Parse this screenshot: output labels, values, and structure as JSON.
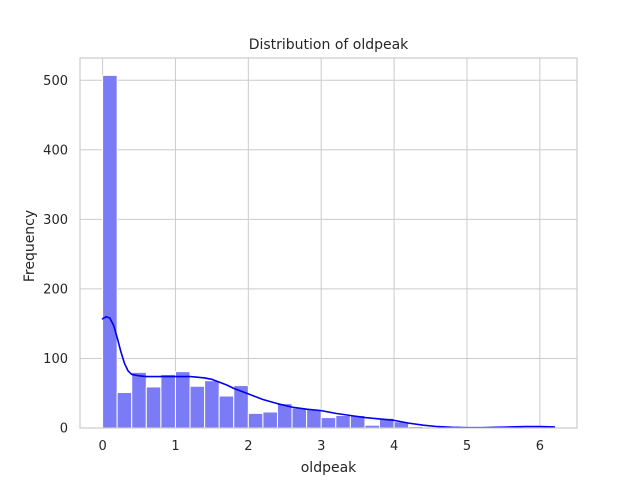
{
  "chart_data": {
    "type": "bar",
    "title": "Distribution of oldpeak",
    "xlabel": "oldpeak",
    "ylabel": "Frequency",
    "xlim": [
      -0.31,
      6.51
    ],
    "ylim": [
      0,
      532
    ],
    "xticks": [
      "0",
      "1",
      "2",
      "3",
      "4",
      "5",
      "6"
    ],
    "yticks": [
      "0",
      "100",
      "200",
      "300",
      "400",
      "500"
    ],
    "grid": true,
    "colors": {
      "bar_fill": "#7b7bf5",
      "bar_edge": "#ffffff",
      "kde_line": "#0000ee",
      "grid": "#cccccc",
      "axes_edge": "#cccccc",
      "background": "#ffffff"
    },
    "bins": [
      {
        "x0": 0.0,
        "x1": 0.2,
        "count": 507
      },
      {
        "x0": 0.2,
        "x1": 0.4,
        "count": 51
      },
      {
        "x0": 0.4,
        "x1": 0.6,
        "count": 80
      },
      {
        "x0": 0.6,
        "x1": 0.8,
        "count": 59
      },
      {
        "x0": 0.8,
        "x1": 1.0,
        "count": 77
      },
      {
        "x0": 1.0,
        "x1": 1.2,
        "count": 81
      },
      {
        "x0": 1.2,
        "x1": 1.4,
        "count": 60
      },
      {
        "x0": 1.4,
        "x1": 1.6,
        "count": 68
      },
      {
        "x0": 1.6,
        "x1": 1.8,
        "count": 46
      },
      {
        "x0": 1.8,
        "x1": 2.0,
        "count": 61
      },
      {
        "x0": 2.0,
        "x1": 2.2,
        "count": 21
      },
      {
        "x0": 2.2,
        "x1": 2.4,
        "count": 23
      },
      {
        "x0": 2.4,
        "x1": 2.6,
        "count": 35
      },
      {
        "x0": 2.6,
        "x1": 2.8,
        "count": 29
      },
      {
        "x0": 2.8,
        "x1": 3.0,
        "count": 27
      },
      {
        "x0": 3.0,
        "x1": 3.2,
        "count": 15
      },
      {
        "x0": 3.2,
        "x1": 3.4,
        "count": 18
      },
      {
        "x0": 3.4,
        "x1": 3.6,
        "count": 18
      },
      {
        "x0": 3.6,
        "x1": 3.8,
        "count": 4
      },
      {
        "x0": 3.8,
        "x1": 4.0,
        "count": 14
      },
      {
        "x0": 4.0,
        "x1": 4.2,
        "count": 9
      },
      {
        "x0": 4.2,
        "x1": 4.4,
        "count": 2
      },
      {
        "x0": 4.4,
        "x1": 4.6,
        "count": 1
      },
      {
        "x0": 4.6,
        "x1": 4.8,
        "count": 0
      },
      {
        "x0": 4.8,
        "x1": 5.0,
        "count": 0
      },
      {
        "x0": 5.0,
        "x1": 5.2,
        "count": 1
      },
      {
        "x0": 5.2,
        "x1": 5.4,
        "count": 1
      },
      {
        "x0": 5.4,
        "x1": 5.6,
        "count": 1
      },
      {
        "x0": 5.6,
        "x1": 5.8,
        "count": 1
      },
      {
        "x0": 5.8,
        "x1": 6.0,
        "count": 1
      },
      {
        "x0": 6.0,
        "x1": 6.2,
        "count": 1
      }
    ],
    "kde": {
      "x": [
        0.0,
        0.05,
        0.1,
        0.15,
        0.2,
        0.25,
        0.3,
        0.35,
        0.4,
        0.5,
        0.6,
        0.7,
        0.8,
        0.9,
        1.0,
        1.1,
        1.2,
        1.3,
        1.4,
        1.5,
        1.6,
        1.7,
        1.8,
        1.9,
        2.0,
        2.2,
        2.4,
        2.6,
        2.8,
        3.0,
        3.2,
        3.4,
        3.6,
        3.8,
        4.0,
        4.2,
        4.4,
        4.6,
        4.8,
        5.0,
        5.2,
        5.4,
        5.6,
        5.8,
        6.0,
        6.2
      ],
      "y": [
        157,
        160,
        158,
        148,
        130,
        110,
        93,
        82,
        77,
        75,
        74,
        74,
        74,
        74,
        74,
        74,
        74,
        73,
        72,
        70,
        66,
        62,
        57,
        53,
        49,
        41,
        35,
        30,
        27,
        25,
        21,
        18,
        15,
        13,
        11,
        7,
        4,
        2,
        1,
        0.5,
        0.5,
        1,
        1.5,
        2,
        2,
        1.5
      ]
    }
  }
}
